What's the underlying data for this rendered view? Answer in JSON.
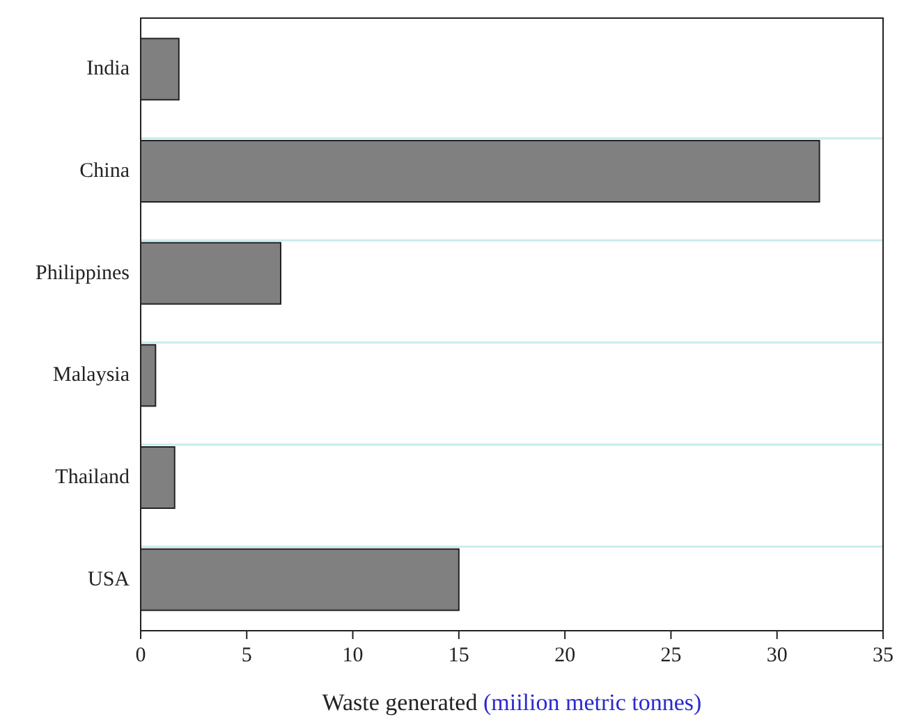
{
  "chart_data": {
    "type": "bar",
    "orientation": "horizontal",
    "xlabel": "Waste generated (miilion metric tonnes)",
    "categories": [
      "India",
      "China",
      "Philippines",
      "Malaysia",
      "Thailand",
      "USA"
    ],
    "values": [
      1.8,
      32.0,
      6.6,
      0.7,
      1.6,
      15.0
    ],
    "color": "#808080",
    "xlim": [
      0,
      35
    ],
    "xticks": [
      0,
      5,
      10,
      15,
      20,
      25,
      30,
      35
    ],
    "grid": "y"
  }
}
